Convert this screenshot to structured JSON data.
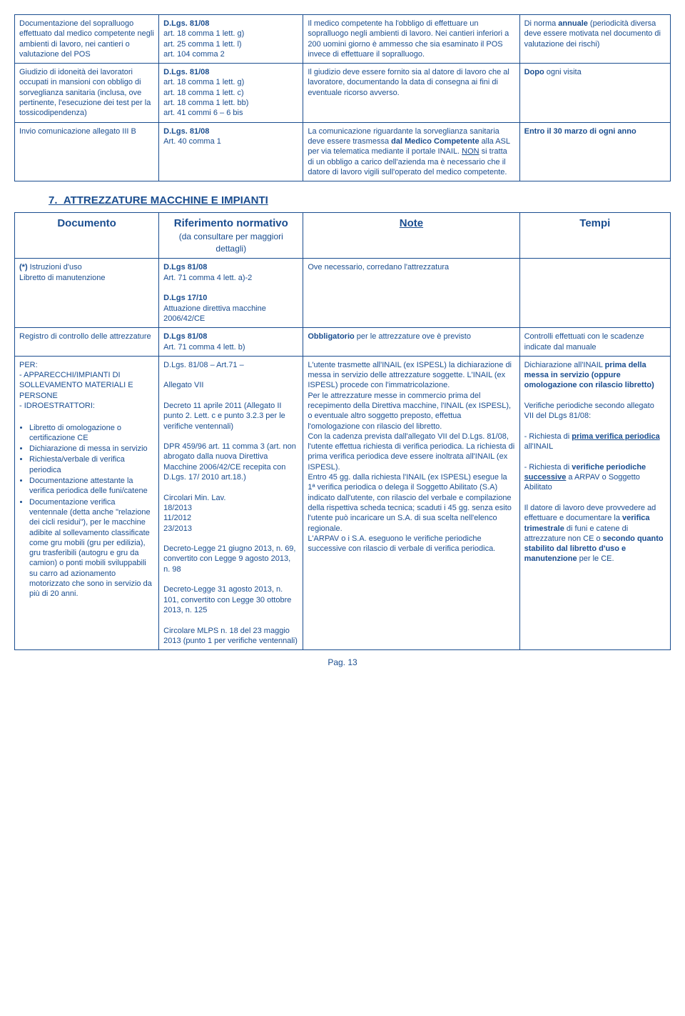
{
  "table1": {
    "rows": [
      {
        "doc": "Documentazione del sopralluogo effettuato dal medico competente negli ambienti di lavoro, nei cantieri o valutazione del POS",
        "ref": "<span class='bold'>D.Lgs. 81/08</span><br>art. 18 comma 1 lett. g)<br>art. 25 comma 1 lett. l)<br>art. 104 comma 2",
        "note": "Il medico competente ha l'obbligo di effettuare un sopralluogo negli ambienti di lavoro. Nei cantieri inferiori a 200 uomini giorno è ammesso che sia esaminato il POS invece di effettuare il sopralluogo.",
        "tempi": "Di norma <span class='bold'>annuale</span> (periodicità diversa deve essere motivata nel documento di valutazione dei rischi)"
      },
      {
        "doc": "Giudizio di idoneità dei lavoratori occupati in mansioni con obbligo di sorveglianza sanitaria (inclusa, ove pertinente, l'esecuzione dei test per la tossicodipendenza)",
        "ref": "<span class='bold'>D.Lgs. 81/08</span><br>art. 18 comma 1 lett. g)<br>art. 18 comma 1 lett. c)<br>art. 18 comma 1 lett. bb)<br>art. 41 commi 6 – 6 bis",
        "note": "Il giudizio deve essere fornito sia al datore di lavoro che al lavoratore, documentando la data di consegna ai fini di eventuale ricorso avverso.",
        "tempi": "<span class='bold'>Dopo</span> ogni visita"
      },
      {
        "doc": "Invio comunicazione allegato III B",
        "ref": "<span class='bold'>D.Lgs. 81/08</span><br>Art. 40 comma 1",
        "note": "La comunicazione riguardante la sorveglianza sanitaria deve essere trasmessa <span class='bold'>dal Medico Competente</span> alla ASL per via telematica mediante il portale INAIL. <span class='underline'>NON</span> si tratta di un obbligo a carico dell'azienda ma è necessario che il datore di lavoro vigili sull'operato del medico competente.",
        "tempi": "<span class='bold'>Entro il 30 marzo di ogni anno</span>"
      }
    ]
  },
  "section7": "7.&nbsp;&nbsp;ATTREZZATURE MACCHINE E IMPIANTI",
  "table2": {
    "headers": {
      "doc": "Documento",
      "ref_main": "Riferimento normativo",
      "ref_sub": "(da consultare per maggiori dettagli)",
      "note": "Note",
      "tempi": "Tempi"
    },
    "rows": [
      {
        "doc": "<span class='bold'>(*)</span> Istruzioni d'uso<br>Libretto di manutenzione",
        "ref": "<span class='bold'>D.Lgs 81/08</span><br>Art. 71 comma 4 lett. a)-2<br><br><span class='bold'>D.Lgs 17/10</span><br>Attuazione direttiva macchine 2006/42/CE",
        "note": "Ove necessario, corredano l'attrezzatura",
        "tempi": ""
      },
      {
        "doc": "Registro di controllo delle attrezzature",
        "ref": "<span class='bold'>D.Lgs 81/08</span><br>Art. 71 comma 4 lett. b)",
        "note": "<span class='bold'>Obbligatorio</span> per le attrezzature ove è previsto",
        "tempi": "Controlli effettuati con le scadenze indicate dal manuale"
      },
      {
        "doc": "PER:<br>- APPARECCHI/IMPIANTI DI SOLLEVAMENTO MATERIALI E PERSONE<br>- IDROESTRATTORI:<br><br><ul><li>Libretto di omologazione o certificazione CE</li><li>Dichiarazione di messa in servizio</li><li>Richiesta/verbale di verifica periodica</li><li>Documentazione attestante la verifica periodica delle funi/catene</li><li>Documentazione verifica ventennale (detta anche \"relazione dei cicli residui\"), per le macchine adibite al sollevamento classificate come gru mobili (gru per edilizia), gru trasferibili (autogru e gru da camion) o ponti mobili sviluppabili su carro ad azionamento motorizzato che sono in servizio da più di 20 anni.</li></ul>",
        "ref": "D.Lgs. 81/08 – Art.71 –<br><br>Allegato VII<br><br>Decreto 11 aprile 2011 (Allegato II punto 2. Lett. c e punto 3.2.3 per le verifiche ventennali)<br><br>DPR 459/96 art. 11 comma 3 (art. non abrogato dalla nuova Direttiva Macchine 2006/42/CE recepita con D.Lgs. 17/ 2010 art.18.)<br><br>Circolari Min. Lav.<br>18/2013<br>11/2012<br>23/2013<br><br>Decreto-Legge 21 giugno 2013, n. 69, convertito con Legge 9 agosto 2013, n. 98<br><br>Decreto-Legge 31 agosto 2013, n. 101, convertito con Legge 30 ottobre 2013, n. 125<br><br>Circolare MLPS n. 18 del 23 maggio 2013 (punto 1 per verifiche ventennali)",
        "note": "L'utente trasmette all'INAIL (ex ISPESL) la dichiarazione di messa in servizio delle attrezzature soggette. L'INAIL (ex ISPESL) procede con l'immatricolazione.<br>Per le attrezzature messe in commercio prima del recepimento della Direttiva macchine, l'INAIL (ex ISPESL), o eventuale altro soggetto preposto, effettua l'omologazione con rilascio del libretto.<br>Con la cadenza prevista dall'allegato VII del D.Lgs. 81/08, l'utente effettua richiesta di verifica periodica. La richiesta di prima verifica periodica deve essere inoltrata all'INAIL (ex ISPESL).<br>Entro 45 gg. dalla richiesta l'INAIL (ex ISPESL) esegue la 1ª verifica periodica o delega il Soggetto Abilitato (S.A) indicato dall'utente, con rilascio del verbale e compilazione della rispettiva scheda tecnica; scaduti i 45 gg. senza esito l'utente può incaricare un S.A. di sua scelta nell'elenco regionale.<br>L'ARPAV o i S.A. eseguono le verifiche periodiche successive con rilascio di verbale di verifica periodica.",
        "tempi": "Dichiarazione all'INAIL <span class='bold'>prima della messa in servizio (oppure omologazione con rilascio libretto)</span><br><br>Verifiche periodiche secondo allegato VII del DLgs 81/08:<br><br>- Richiesta di <span class='bold underline'>prima verifica periodica</span> all'INAIL<br><br>- Richiesta di <span class='bold'>verifiche periodiche <span class='underline'>successive</span></span> a ARPAV o Soggetto Abilitato<br><br>Il datore di lavoro deve provvedere ad effettuare e documentare la <span class='bold'>verifica trimestrale</span> di funi e catene di attrezzature non CE o <span class='bold'>secondo quanto stabilito dal libretto d'uso e manutenzione</span> per le CE."
      }
    ]
  },
  "page": "Pag. 13"
}
